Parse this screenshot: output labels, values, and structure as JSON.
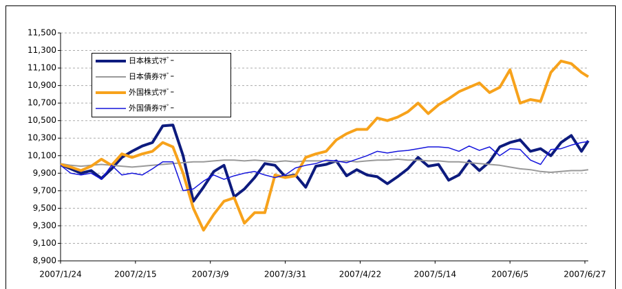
{
  "chart_data": {
    "type": "line",
    "x": [
      "2007/1/24",
      "2007/1/27",
      "2007/1/30",
      "2007/2/2",
      "2007/2/5",
      "2007/2/8",
      "2007/2/11",
      "2007/2/14",
      "2007/2/17",
      "2007/2/20",
      "2007/2/23",
      "2007/2/26",
      "2007/3/1",
      "2007/3/4",
      "2007/3/7",
      "2007/3/10",
      "2007/3/13",
      "2007/3/16",
      "2007/3/19",
      "2007/3/22",
      "2007/3/25",
      "2007/3/28",
      "2007/3/31",
      "2007/4/3",
      "2007/4/6",
      "2007/4/9",
      "2007/4/12",
      "2007/4/15",
      "2007/4/18",
      "2007/4/21",
      "2007/4/24",
      "2007/4/27",
      "2007/4/30",
      "2007/5/3",
      "2007/5/6",
      "2007/5/9",
      "2007/5/12",
      "2007/5/15",
      "2007/5/18",
      "2007/5/21",
      "2007/5/24",
      "2007/5/27",
      "2007/5/30",
      "2007/6/2",
      "2007/6/5",
      "2007/6/8",
      "2007/6/11",
      "2007/6/14",
      "2007/6/17",
      "2007/6/20",
      "2007/6/23",
      "2007/6/26",
      "2007/6/28"
    ],
    "series": [
      {
        "name": "日本株式ﾏｻﾞｰ",
        "color": "#0d1b7e",
        "width": 4,
        "values": [
          10000,
          9950,
          9900,
          9930,
          9840,
          9950,
          10080,
          10150,
          10210,
          10250,
          10440,
          10450,
          10100,
          9580,
          9740,
          9920,
          9990,
          9630,
          9720,
          9850,
          10010,
          9990,
          9860,
          9880,
          9740,
          9980,
          10000,
          10040,
          9870,
          9940,
          9880,
          9860,
          9780,
          9860,
          9950,
          10080,
          9980,
          10000,
          9820,
          9880,
          10040,
          9930,
          10030,
          10200,
          10250,
          10280,
          10150,
          10180,
          10100,
          10250,
          10330,
          10150,
          10270
        ]
      },
      {
        "name": "日本債券ﾏｻﾞｰ",
        "color": "#999999",
        "width": 2,
        "values": [
          10010,
          9990,
          9980,
          9990,
          10000,
          9990,
          9980,
          9970,
          9980,
          9990,
          10000,
          10010,
          10020,
          10030,
          10030,
          10040,
          10050,
          10050,
          10040,
          10050,
          10040,
          10030,
          10040,
          10030,
          10040,
          10040,
          10040,
          10030,
          10040,
          10030,
          10040,
          10050,
          10050,
          10060,
          10050,
          10050,
          10040,
          10040,
          10030,
          10030,
          10020,
          10010,
          10000,
          9990,
          9970,
          9950,
          9940,
          9920,
          9910,
          9920,
          9930,
          9930,
          9940
        ]
      },
      {
        "name": "外国株式ﾏｻﾞｰ",
        "color": "#f7a21b",
        "width": 4,
        "values": [
          10000,
          9970,
          9930,
          9980,
          10060,
          9990,
          10120,
          10080,
          10120,
          10150,
          10250,
          10200,
          9900,
          9500,
          9250,
          9430,
          9580,
          9620,
          9330,
          9450,
          9450,
          9880,
          9850,
          9870,
          10080,
          10120,
          10150,
          10280,
          10350,
          10400,
          10400,
          10530,
          10500,
          10540,
          10600,
          10700,
          10580,
          10680,
          10750,
          10830,
          10880,
          10930,
          10820,
          10880,
          11080,
          10700,
          10740,
          10720,
          11050,
          11180,
          11150,
          11050,
          11000
        ]
      },
      {
        "name": "外国債券ﾏｻﾞｰ",
        "color": "#1414dc",
        "width": 1.5,
        "values": [
          9990,
          9900,
          9880,
          9900,
          9830,
          9990,
          9880,
          9900,
          9880,
          9950,
          10030,
          10030,
          9700,
          9720,
          9810,
          9880,
          9830,
          9870,
          9900,
          9920,
          9880,
          9850,
          9880,
          9960,
          9990,
          10010,
          10050,
          10040,
          10020,
          10060,
          10100,
          10150,
          10130,
          10150,
          10160,
          10180,
          10200,
          10200,
          10190,
          10150,
          10210,
          10160,
          10200,
          10100,
          10180,
          10170,
          10050,
          10000,
          10170,
          10180,
          10220,
          10250,
          10260
        ]
      }
    ],
    "xlim": [
      "2007/1/24",
      "2007/6/28"
    ],
    "xticks": [
      "2007/1/24",
      "2007/2/15",
      "2007/3/9",
      "2007/3/31",
      "2007/4/22",
      "2007/5/14",
      "2007/6/5",
      "2007/6/27"
    ],
    "ylim": [
      8900,
      11500
    ],
    "yticks": [
      {
        "value": 8900,
        "label": "8,900"
      },
      {
        "value": 9100,
        "label": "9,100"
      },
      {
        "value": 9300,
        "label": "9,300"
      },
      {
        "value": 9500,
        "label": "9,500"
      },
      {
        "value": 9700,
        "label": "9,700"
      },
      {
        "value": 9900,
        "label": "9,900"
      },
      {
        "value": 10100,
        "label": "10,100"
      },
      {
        "value": 10300,
        "label": "10,300"
      },
      {
        "value": 10500,
        "label": "10,500"
      },
      {
        "value": 10700,
        "label": "10,700"
      },
      {
        "value": 10900,
        "label": "10,900"
      },
      {
        "value": 11100,
        "label": "11,100"
      },
      {
        "value": 11300,
        "label": "11,300"
      },
      {
        "value": 11500,
        "label": "11,500"
      }
    ],
    "grid": true,
    "legend": "upper left"
  }
}
